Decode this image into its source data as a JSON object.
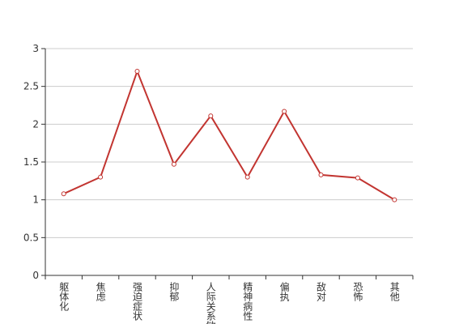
{
  "chart_data": {
    "type": "line",
    "categories": [
      "躯体化",
      "焦虑",
      "强迫症状",
      "抑郁",
      "人际关系敏感",
      "精神病性",
      "偏执",
      "敌对",
      "恐怖",
      "其他"
    ],
    "values": [
      1.08,
      1.3,
      2.7,
      1.47,
      2.11,
      1.3,
      2.17,
      1.33,
      1.29,
      1.0
    ],
    "color": "#c23531",
    "ylim": [
      0,
      3
    ],
    "yticks": [
      0,
      0.5,
      1,
      1.5,
      2,
      2.5,
      3
    ],
    "grid": true
  }
}
